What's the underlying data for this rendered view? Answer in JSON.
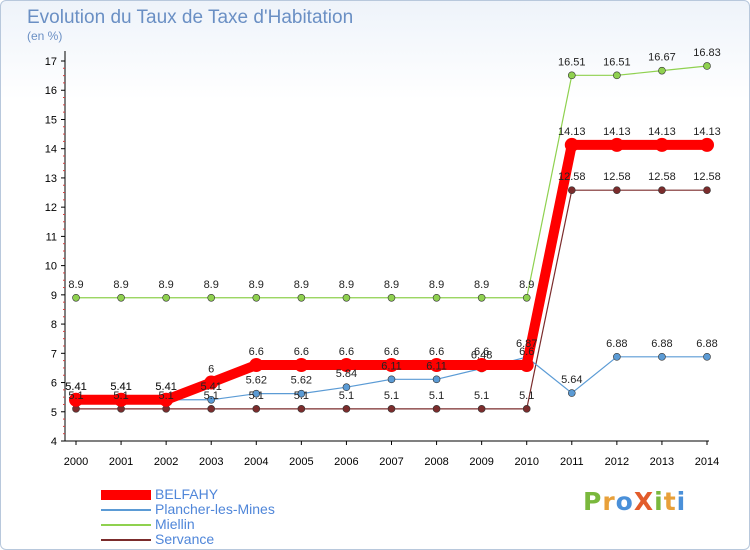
{
  "header": {
    "title": "Evolution du Taux de Taxe d'Habitation",
    "subtitle": "(en %)"
  },
  "brand": {
    "text": "ProXiti",
    "letters": [
      {
        "ch": "P",
        "color": "#7ab83d"
      },
      {
        "ch": "r",
        "color": "#e8a03a"
      },
      {
        "ch": "o",
        "color": "#4a90d9"
      },
      {
        "ch": "X",
        "color": "#e25c2b"
      },
      {
        "ch": "i",
        "color": "#7ab83d"
      },
      {
        "ch": "t",
        "color": "#e8a03a"
      },
      {
        "ch": "i",
        "color": "#4a90d9"
      }
    ]
  },
  "chart_data": {
    "type": "line",
    "title": "Evolution du Taux de Taxe d'Habitation",
    "subtitle": "(en %)",
    "xlabel": "",
    "ylabel": "",
    "x": [
      "2000",
      "2001",
      "2002",
      "2003",
      "2004",
      "2005",
      "2006",
      "2007",
      "2008",
      "2009",
      "2010",
      "2011",
      "2012",
      "2013",
      "2014"
    ],
    "ylim": [
      4,
      17
    ],
    "yticks": [
      4,
      5,
      6,
      7,
      8,
      9,
      10,
      11,
      12,
      13,
      14,
      15,
      16,
      17
    ],
    "grid": false,
    "legend_position": "bottom-left",
    "series": [
      {
        "name": "BELFAHY",
        "color": "#ff0000",
        "values": [
          5.41,
          5.41,
          5.41,
          6,
          6.6,
          6.6,
          6.6,
          6.6,
          6.6,
          6.6,
          6.6,
          14.13,
          14.13,
          14.13,
          14.13
        ],
        "labels": [
          "5.41",
          "5.41",
          "5.41",
          "6",
          "6.6",
          "6.6",
          "6.6",
          "6.6",
          "6.6",
          "6.6",
          "6.6",
          "14.13",
          "14.13",
          "14.13",
          "14.13"
        ]
      },
      {
        "name": "Plancher-les-Mines",
        "color": "#5b9bd5",
        "values": [
          5.41,
          5.41,
          5.41,
          5.41,
          5.62,
          5.62,
          5.84,
          6.11,
          6.11,
          6.48,
          6.87,
          5.64,
          6.88,
          6.88,
          6.88
        ],
        "labels": [
          "5.41",
          "5.41",
          "5.41",
          "5.41",
          "5.62",
          "5.62",
          "5.84",
          "6.11",
          "6.11",
          "6.48",
          "6.87",
          "5.64",
          "6.88",
          "6.88",
          "6.88"
        ]
      },
      {
        "name": "Miellin",
        "color": "#8fd14f",
        "values": [
          8.9,
          8.9,
          8.9,
          8.9,
          8.9,
          8.9,
          8.9,
          8.9,
          8.9,
          8.9,
          8.9,
          16.51,
          16.51,
          16.67,
          16.83
        ],
        "labels": [
          "8.9",
          "8.9",
          "8.9",
          "8.9",
          "8.9",
          "8.9",
          "8.9",
          "8.9",
          "8.9",
          "8.9",
          "8.9",
          "16.51",
          "16.51",
          "16.67",
          "16.83"
        ]
      },
      {
        "name": "Servance",
        "color": "#7b2c2c",
        "values": [
          5.1,
          5.1,
          5.1,
          5.1,
          5.1,
          5.1,
          5.1,
          5.1,
          5.1,
          5.1,
          5.1,
          12.58,
          12.58,
          12.58,
          12.58
        ],
        "labels": [
          "5.1",
          "5.1",
          "5.1",
          "5.1",
          "5.1",
          "5.1",
          "5.1",
          "5.1",
          "5.1",
          "5.1",
          "5.1",
          "12.58",
          "12.58",
          "12.58",
          "12.58"
        ]
      }
    ]
  }
}
